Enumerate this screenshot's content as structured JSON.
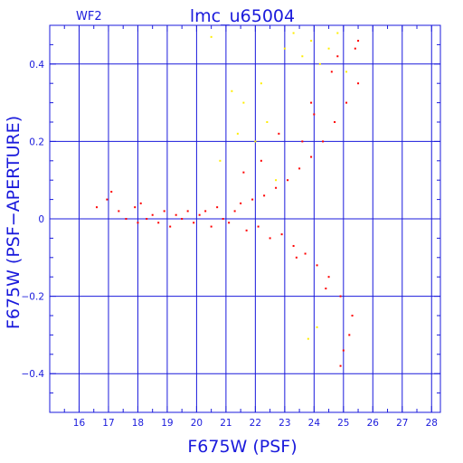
{
  "chart_data": {
    "type": "scatter",
    "title": "lmc_u65004",
    "panel_label": "WF2",
    "xlabel": "F675W (PSF)",
    "ylabel": "F675W (PSF−APERTURE)",
    "xlim": [
      15,
      28.3
    ],
    "ylim": [
      -0.5,
      0.5
    ],
    "x_ticks": [
      16,
      17,
      18,
      19,
      20,
      21,
      22,
      23,
      24,
      25,
      26,
      27,
      28
    ],
    "y_ticks": [
      -0.4,
      -0.2,
      0,
      0.2,
      0.4
    ],
    "y_tick_labels": [
      "−0.4",
      "−0.2",
      "0",
      "0.2",
      "0.4"
    ],
    "grid": true,
    "colors": {
      "axes": "#1a1adc",
      "grid": "#1a1adc",
      "primary_points": "#ff0000",
      "secondary_points": "#ffee00"
    },
    "series": [
      {
        "color": "#ff0000",
        "x": [
          16.6,
          16.95,
          17.1,
          17.35,
          17.6,
          17.9,
          18.0,
          18.1,
          18.3,
          18.5,
          18.7,
          18.9,
          19.1,
          19.3,
          19.5,
          19.7,
          19.9,
          20.1,
          20.3,
          20.5,
          20.7,
          20.9,
          21.1,
          21.3,
          21.5,
          21.7,
          21.9,
          22.1,
          22.3,
          22.5,
          22.7,
          22.9,
          23.1,
          23.3,
          23.5,
          23.7,
          23.9,
          24.1,
          24.3,
          24.5,
          24.7,
          24.9,
          25.1,
          25.3,
          25.5,
          21.6,
          22.2,
          22.8,
          23.4,
          23.9,
          24.4,
          24.8,
          25.2,
          25.5,
          24.6,
          25.0,
          25.4,
          24.0,
          23.6,
          24.9
        ],
        "y": [
          0.03,
          0.05,
          0.07,
          0.02,
          0.0,
          0.03,
          -0.01,
          0.04,
          0.0,
          0.01,
          -0.01,
          0.02,
          -0.02,
          0.01,
          0.0,
          0.02,
          -0.01,
          0.01,
          0.02,
          -0.02,
          0.03,
          0.0,
          -0.01,
          0.02,
          0.04,
          -0.03,
          0.05,
          -0.02,
          0.06,
          -0.05,
          0.08,
          -0.04,
          0.1,
          -0.07,
          0.13,
          -0.09,
          0.16,
          -0.12,
          0.2,
          -0.15,
          0.25,
          -0.2,
          0.3,
          -0.25,
          0.35,
          0.12,
          0.15,
          0.22,
          -0.1,
          0.3,
          -0.18,
          0.42,
          -0.3,
          0.46,
          0.38,
          -0.34,
          0.44,
          0.27,
          0.2,
          -0.38
        ]
      },
      {
        "color": "#ffee00",
        "x": [
          20.5,
          20.8,
          21.2,
          21.6,
          22.0,
          22.4,
          22.7,
          23.0,
          23.3,
          23.6,
          23.9,
          24.2,
          24.5,
          24.8,
          25.1,
          21.4,
          22.2,
          23.8,
          24.1
        ],
        "y": [
          0.47,
          0.15,
          0.33,
          0.3,
          0.2,
          0.25,
          0.1,
          0.44,
          0.48,
          0.42,
          0.46,
          0.4,
          0.44,
          0.48,
          0.38,
          0.22,
          0.35,
          -0.31,
          -0.28
        ]
      }
    ]
  }
}
